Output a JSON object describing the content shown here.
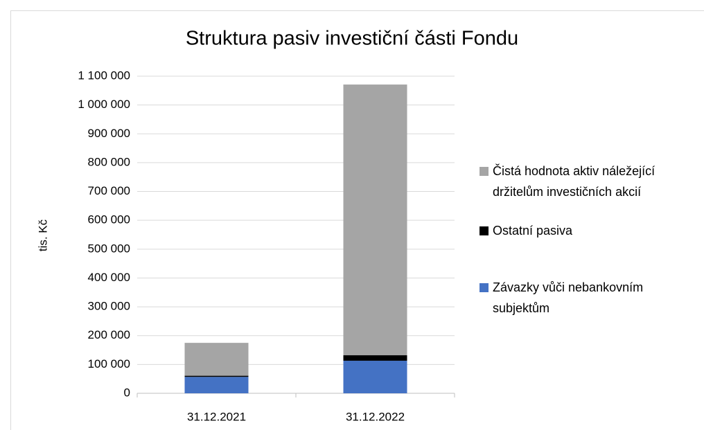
{
  "chart_data": {
    "type": "stacked_bar",
    "title": "Struktura pasiv investiční části Fondu",
    "y_label": "tis. Kč",
    "categories": [
      "31.12.2021",
      "31.12.2022"
    ],
    "series": [
      {
        "name": "Závazky vůči nebankovním subjektům",
        "color": "#4472c4",
        "values": [
          57000,
          113000
        ]
      },
      {
        "name": "Ostatní pasiva",
        "color": "#000000",
        "values": [
          4000,
          19000
        ]
      },
      {
        "name": "Čistá hodnota aktiv náležející držitelům investičních akcií",
        "color": "#a5a5a5",
        "values": [
          114000,
          939000
        ]
      }
    ],
    "ylim": [
      0,
      1100000
    ],
    "yticks": [
      0,
      {
        "value": 100000,
        "label": "100 000"
      },
      {
        "value": 200000,
        "label": "200 000"
      },
      {
        "value": 300000,
        "label": "300 000"
      },
      {
        "value": 400000,
        "label": "400 000"
      },
      {
        "value": 500000,
        "label": "500 000"
      },
      {
        "value": 600000,
        "label": "600 000"
      },
      {
        "value": 700000,
        "label": "700 000"
      },
      {
        "value": 800000,
        "label": "800 000"
      },
      {
        "value": 900000,
        "label": "900 000"
      },
      {
        "value": 1000000,
        "label": "1 000 000"
      },
      {
        "value": 1100000,
        "label": "1 100 000"
      }
    ],
    "grid": true,
    "legend": "right"
  }
}
